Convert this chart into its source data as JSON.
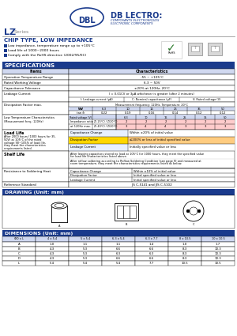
{
  "blue_dark": "#1a3a8c",
  "blue_mid": "#4472c4",
  "blue_light": "#d0d8f0",
  "orange_hl": "#ffa500",
  "pink_hl": "#ffcccc",
  "yellow_hl": "#ffff99",
  "white": "#ffffff",
  "black": "#000000",
  "gray": "#888888",
  "gray_light": "#cccccc",
  "green_check": "#2a7a2a",
  "header_logo_text": "DB LECTRO:",
  "header_sub1": "COMPOSANTS ELECTRONIQUES",
  "header_sub2": "ELECTRONIC COMPONENTS",
  "series_lz": "LZ",
  "series_rest": "Series",
  "chip_type": "CHIP TYPE, LOW IMPEDANCE",
  "bullets": [
    "Low impedance, temperature range up to +105°C",
    "Load life of 1000~2000 hours",
    "Comply with the RoHS directive (2002/95/EC)"
  ],
  "spec_title": "SPECIFICATIONS",
  "items_label": "Items",
  "char_label": "Characteristics",
  "spec_rows": [
    [
      "Operation Temperature Range",
      "-55 ~ +105°C"
    ],
    [
      "Rated Working Voltage",
      "6.3 ~ 50V"
    ],
    [
      "Capacitance Tolerance",
      "±20% at 120Hz, 20°C"
    ]
  ],
  "leakage_title": "Leakage Current",
  "leakage_formula": "I = 0.01CV or 3μA whichever is greater (after 2 minutes)",
  "leakage_cols": [
    "I: Leakage current (μA)",
    "C: Nominal capacitance (μF)",
    "V: Rated voltage (V)"
  ],
  "dissipation_title": "Dissipation Factor max.",
  "dissipation_freq": "Measurement frequency: 120Hz, Temperature: 20°C",
  "diss_headers": [
    "WV",
    "6.3",
    "10",
    "16",
    "25",
    "35",
    "50"
  ],
  "diss_values": [
    "tan δ",
    "0.22",
    "0.19",
    "0.16",
    "0.14",
    "0.12",
    "0.12"
  ],
  "lt_title1": "Low Temperature Characteristics",
  "lt_title2": "(Measurement freq.: 120Hz)",
  "lt_volt_header": "Rated voltage (V)",
  "lt_volts": [
    "6.3",
    "10",
    "16",
    "25",
    "35",
    "50"
  ],
  "lt_row1_label": "Impedance ratio",
  "lt_row1_sub": "Z(-25°C) / Z(20°C)",
  "lt_row1_vals": [
    "2",
    "2",
    "2",
    "2",
    "2",
    "2"
  ],
  "lt_row2_label": "at 120Hz max.",
  "lt_row2_sub": "Z(-40°C) / Z(20°C)",
  "lt_row2_vals": [
    "3",
    "4",
    "4",
    "3",
    "3",
    "3"
  ],
  "load_life_title": "Load Life",
  "load_life_desc": [
    "After 2000 hours (1000 hours for 35,",
    "50V) at 105°C of the rated",
    "voltage 90~105% of load life,",
    "they meet the characteristics",
    "requirements listed."
  ],
  "ll_rows": [
    [
      "Capacitance Change",
      "Within ±20% of initial value"
    ],
    [
      "Dissipation Factor",
      "≤200% or less of initial specified value"
    ],
    [
      "Leakage Current",
      "Initially specified value or less"
    ]
  ],
  "ll_colors": [
    "#e8f0ff",
    "#ffd700",
    "#e8f0ff"
  ],
  "ll_rcolors": [
    "#ffffff",
    "#ffcc80",
    "#ffffff"
  ],
  "shelf_title": "Shelf Life",
  "shelf_text1": [
    "After leaving capacitors stored no load at 105°C for 1000 hours, they meet the specified value",
    "for load life characteristics listed above."
  ],
  "shelf_text2": [
    "After reflow soldering according to Reflow Soldering Condition (see page 9) and measured at",
    "room temperature, they meet the characteristics requirements listed as below."
  ],
  "solder_title": "Resistance to Soldering Heat",
  "solder_rows": [
    [
      "Capacitance Change",
      "Within ±10% of initial value"
    ],
    [
      "Dissipation Factor",
      "Initial specified value or less"
    ],
    [
      "Leakage Current",
      "Initial specified value or less"
    ]
  ],
  "ref_title": "Reference Standard",
  "ref_value": "JIS C-5141 and JIS C-5102",
  "drawing_title": "DRAWING (Unit: mm)",
  "dim_title": "DIMENSIONS (Unit: mm)",
  "dim_headers": [
    "ΦD x L",
    "4 x 5.4",
    "5 x 5.4",
    "6.3 x 5.4",
    "6.3 x 7.7",
    "8 x 10.5",
    "10 x 10.5"
  ],
  "dim_rows": [
    [
      "A",
      "1.0",
      "1.1",
      "1.1",
      "1.4",
      "1.0",
      "1.7"
    ],
    [
      "B",
      "4.3",
      "5.3",
      "6.6",
      "6.6",
      "8.3",
      "10.3"
    ],
    [
      "C",
      "4.3",
      "5.3",
      "6.3",
      "6.3",
      "8.3",
      "10.3"
    ],
    [
      "D",
      "4.3",
      "5.3",
      "6.6",
      "6.6",
      "8.3",
      "10.3"
    ],
    [
      "L",
      "5.4",
      "5.4",
      "5.4",
      "7.7",
      "10.5",
      "10.5"
    ]
  ]
}
